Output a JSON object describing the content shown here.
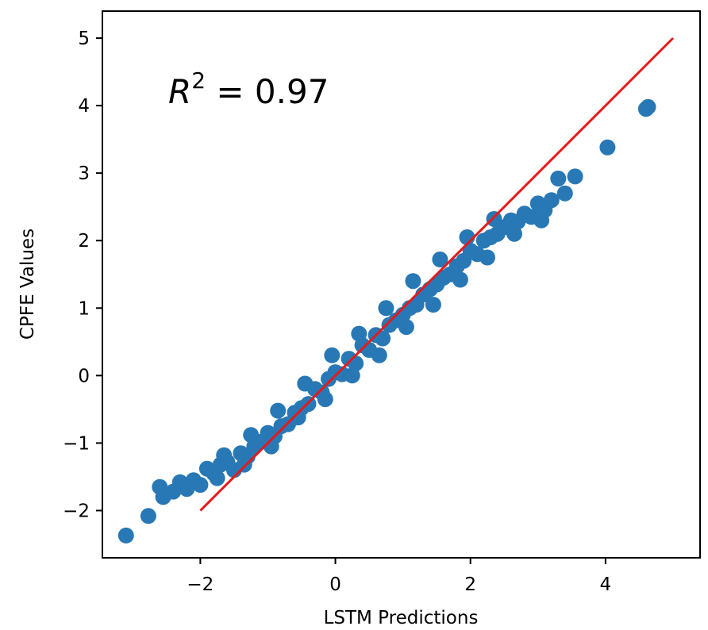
{
  "chart_data": {
    "type": "scatter",
    "title": "",
    "xlabel": "LSTM Predictions",
    "ylabel": "CPFE Values",
    "xlim": [
      -3.45,
      5.4
    ],
    "ylim": [
      -2.7,
      5.4
    ],
    "xticks": [
      -2,
      0,
      2,
      4
    ],
    "yticks": [
      -2,
      -1,
      0,
      1,
      2,
      3,
      4,
      5
    ],
    "xtick_labels": [
      "−2",
      "0",
      "2",
      "4"
    ],
    "ytick_labels": [
      "−2",
      "−1",
      "0",
      "1",
      "2",
      "3",
      "4",
      "5"
    ],
    "grid": false,
    "legend": "none",
    "annotation": {
      "text_main": "R",
      "text_sup": "2",
      "text_value": " = 0.97"
    },
    "series": [
      {
        "color": "#2878b5",
        "marker": "circle",
        "points": [
          [
            -3.1,
            -2.37
          ],
          [
            -2.77,
            -2.08
          ],
          [
            -2.6,
            -1.65
          ],
          [
            -2.55,
            -1.8
          ],
          [
            -2.4,
            -1.72
          ],
          [
            -2.3,
            -1.58
          ],
          [
            -2.2,
            -1.68
          ],
          [
            -2.1,
            -1.55
          ],
          [
            -2.0,
            -1.62
          ],
          [
            -1.9,
            -1.38
          ],
          [
            -1.8,
            -1.45
          ],
          [
            -1.7,
            -1.32
          ],
          [
            -1.6,
            -1.28
          ],
          [
            -1.5,
            -1.4
          ],
          [
            -1.4,
            -1.15
          ],
          [
            -1.3,
            -1.2
          ],
          [
            -1.2,
            -1.05
          ],
          [
            -1.1,
            -0.98
          ],
          [
            -1.0,
            -0.85
          ],
          [
            -0.9,
            -0.9
          ],
          [
            -0.8,
            -0.75
          ],
          [
            -0.7,
            -0.72
          ],
          [
            -0.6,
            -0.55
          ],
          [
            -0.5,
            -0.48
          ],
          [
            -0.4,
            -0.42
          ],
          [
            -0.3,
            -0.2
          ],
          [
            -0.2,
            -0.25
          ],
          [
            -0.1,
            -0.05
          ],
          [
            0.0,
            0.05
          ],
          [
            0.1,
            0.02
          ],
          [
            0.2,
            0.25
          ],
          [
            0.3,
            0.18
          ],
          [
            0.4,
            0.45
          ],
          [
            0.5,
            0.38
          ],
          [
            0.6,
            0.6
          ],
          [
            0.7,
            0.55
          ],
          [
            0.8,
            0.75
          ],
          [
            0.9,
            0.82
          ],
          [
            1.0,
            0.9
          ],
          [
            1.1,
            1.0
          ],
          [
            1.2,
            1.05
          ],
          [
            1.3,
            1.2
          ],
          [
            1.4,
            1.28
          ],
          [
            1.5,
            1.35
          ],
          [
            1.6,
            1.45
          ],
          [
            1.7,
            1.5
          ],
          [
            1.8,
            1.62
          ],
          [
            1.9,
            1.7
          ],
          [
            2.0,
            1.85
          ],
          [
            2.1,
            1.8
          ],
          [
            2.2,
            2.0
          ],
          [
            2.3,
            2.05
          ],
          [
            2.4,
            2.1
          ],
          [
            2.5,
            2.2
          ],
          [
            2.6,
            2.3
          ],
          [
            2.7,
            2.28
          ],
          [
            2.8,
            2.4
          ],
          [
            2.9,
            2.35
          ],
          [
            3.0,
            2.55
          ],
          [
            3.1,
            2.45
          ],
          [
            3.2,
            2.6
          ],
          [
            3.3,
            2.92
          ],
          [
            3.4,
            2.7
          ],
          [
            3.55,
            2.95
          ],
          [
            4.03,
            3.38
          ],
          [
            4.6,
            3.95
          ],
          [
            4.63,
            3.98
          ],
          [
            -1.75,
            -1.52
          ],
          [
            -1.35,
            -1.32
          ],
          [
            -0.95,
            -1.05
          ],
          [
            -0.55,
            -0.62
          ],
          [
            -0.15,
            -0.35
          ],
          [
            0.25,
            0.0
          ],
          [
            0.65,
            0.3
          ],
          [
            1.05,
            0.72
          ],
          [
            1.45,
            1.05
          ],
          [
            1.85,
            1.42
          ],
          [
            2.25,
            1.75
          ],
          [
            2.65,
            2.1
          ],
          [
            3.05,
            2.3
          ],
          [
            -1.65,
            -1.18
          ],
          [
            -1.25,
            -0.88
          ],
          [
            -0.85,
            -0.52
          ],
          [
            -0.45,
            -0.12
          ],
          [
            -0.05,
            0.3
          ],
          [
            0.35,
            0.62
          ],
          [
            0.75,
            1.0
          ],
          [
            1.15,
            1.4
          ],
          [
            1.55,
            1.72
          ],
          [
            1.95,
            2.05
          ],
          [
            2.35,
            2.32
          ]
        ]
      }
    ],
    "reference_line": {
      "color": "#e41a1c",
      "x": [
        -2,
        5
      ],
      "y": [
        -2,
        5
      ]
    }
  }
}
